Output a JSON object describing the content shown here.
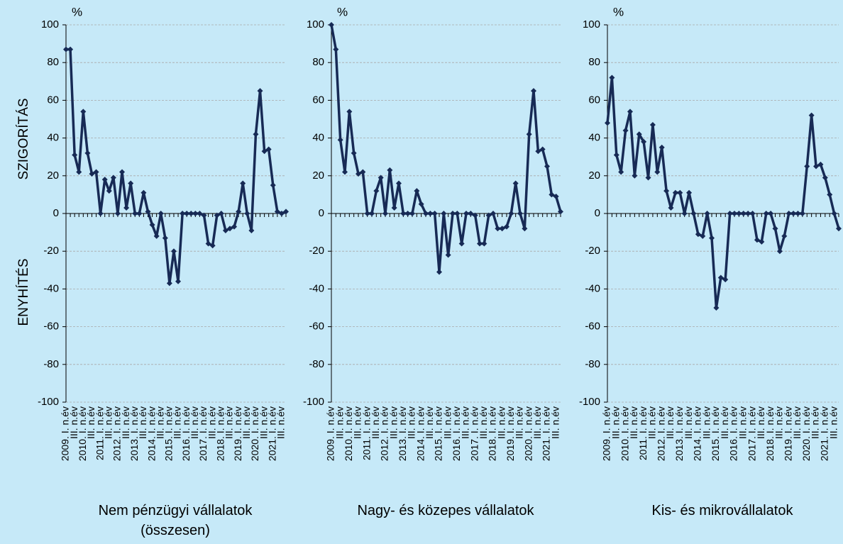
{
  "chart_data": [
    {
      "type": "line",
      "title": "Nem pénzügyi vállalatok (összesen)",
      "unit": "%",
      "y_label_top": "SZIGORÍTÁS",
      "y_label_bottom": "ENYHÍTÉS",
      "categories": [
        "2009. I. n.év",
        null,
        "III. n.év",
        null,
        "2010. I. n.év",
        null,
        "III. n.év",
        null,
        "2011. I. n.év",
        null,
        "III. n.év",
        null,
        "2012. I. n.év",
        null,
        "III. n.év",
        null,
        "2013. I. n.év",
        null,
        "III. n.év",
        null,
        "2014. I. n.év",
        null,
        "III. n.év",
        null,
        "2015. I. n.év",
        null,
        "III. n.év",
        null,
        "2016. I. n.év",
        null,
        "III. n.év",
        null,
        "2017. I. n.év",
        null,
        "III. n.év",
        null,
        "2018. I. n.év",
        null,
        "III. n.év",
        null,
        "2019. I. n.év",
        null,
        "III. n.év",
        null,
        "2020. I. n.év",
        null,
        "III. n.év",
        null,
        "2021. I. n.év",
        null,
        "III. n.év",
        null
      ],
      "values": [
        87,
        87,
        31,
        22,
        54,
        32,
        21,
        22,
        0,
        18,
        12,
        19,
        0,
        22,
        3,
        16,
        0,
        0,
        11,
        1,
        -6,
        -12,
        0,
        -13,
        -37,
        -20,
        -36,
        0,
        0,
        0,
        0,
        0,
        -1,
        -16,
        -17,
        -1,
        0,
        -9,
        -8,
        -7,
        1,
        16,
        0,
        -9,
        42,
        65,
        33,
        34,
        15,
        1,
        0,
        1
      ],
      "color": "#172a55",
      "ylim": [
        -100,
        100
      ],
      "yticks": [
        -100,
        -80,
        -60,
        -40,
        -20,
        0,
        20,
        40,
        60,
        80,
        100
      ],
      "grid": true
    },
    {
      "type": "line",
      "title": "Nagy- és közepes vállalatok",
      "unit": "%",
      "categories": [
        "2009. I. n.év",
        null,
        "III. n.év",
        null,
        "2010. I. n.év",
        null,
        "III. n.év",
        null,
        "2011. I. n.év",
        null,
        "III. n.év",
        null,
        "2012. I. n.év",
        null,
        "III. n.év",
        null,
        "2013. I. n.év",
        null,
        "III. n.év",
        null,
        "2014. I. n.év",
        null,
        "III. n.év",
        null,
        "2015. I. n.év",
        null,
        "III. n.év",
        null,
        "2016. I. n.év",
        null,
        "III. n.év",
        null,
        "2017. I. n.év",
        null,
        "III. n.év",
        null,
        "2018. I. n.év",
        null,
        "III. n.év",
        null,
        "2019. I. n.év",
        null,
        "III. n.év",
        null,
        "2020. I. n.év",
        null,
        "III. n.év",
        null,
        "2021. I. n.év",
        null,
        "III. n.év",
        null
      ],
      "values": [
        100,
        87,
        39,
        22,
        54,
        32,
        21,
        22,
        0,
        0,
        12,
        19,
        0,
        23,
        3,
        16,
        0,
        0,
        0,
        12,
        5,
        0,
        0,
        0,
        -31,
        0,
        -22,
        0,
        0,
        -16,
        0,
        0,
        -1,
        -16,
        -16,
        -1,
        0,
        -8,
        -8,
        -7,
        0,
        16,
        0,
        -8,
        42,
        65,
        33,
        34,
        25,
        10,
        9,
        1
      ],
      "color": "#172a55",
      "ylim": [
        -100,
        100
      ],
      "yticks": [
        -100,
        -80,
        -60,
        -40,
        -20,
        0,
        20,
        40,
        60,
        80,
        100
      ],
      "grid": true
    },
    {
      "type": "line",
      "title": "Kis- és mikrovállalatok",
      "unit": "%",
      "categories": [
        "2009. I. n.év",
        null,
        "III. n.év",
        null,
        "2010. I. n.év",
        null,
        "III. n.év",
        null,
        "2011. I. n.év",
        null,
        "III. n.év",
        null,
        "2012. I. n.év",
        null,
        "III. n.év",
        null,
        "2013. I. n.év",
        null,
        "III. n.év",
        null,
        "2014. I. n.év",
        null,
        "III. n.év",
        null,
        "2015. I. n.év",
        null,
        "III. n.év",
        null,
        "2016. I. n.év",
        null,
        "III. n.év",
        null,
        "2017. I. n.év",
        null,
        "III. n.év",
        null,
        "2018. I. n.év",
        null,
        "III. n.év",
        null,
        "2019. I. n.év",
        null,
        "III. n.év",
        null,
        "2020. I. n.év",
        null,
        "III. n.év",
        null,
        "2021. I. n.év",
        null,
        "III. n.év",
        null
      ],
      "values": [
        48,
        72,
        31,
        22,
        44,
        54,
        20,
        42,
        38,
        19,
        47,
        22,
        35,
        12,
        3,
        11,
        11,
        0,
        11,
        0,
        -11,
        -12,
        0,
        -13,
        -50,
        -34,
        -35,
        0,
        0,
        0,
        0,
        0,
        0,
        -14,
        -15,
        0,
        0,
        -8,
        -20,
        -12,
        0,
        0,
        0,
        0,
        25,
        52,
        25,
        26,
        19,
        10,
        0,
        -8
      ],
      "color": "#172a55",
      "ylim": [
        -100,
        100
      ],
      "yticks": [
        -100,
        -80,
        -60,
        -40,
        -20,
        0,
        20,
        40,
        60,
        80,
        100
      ],
      "grid": true
    }
  ]
}
